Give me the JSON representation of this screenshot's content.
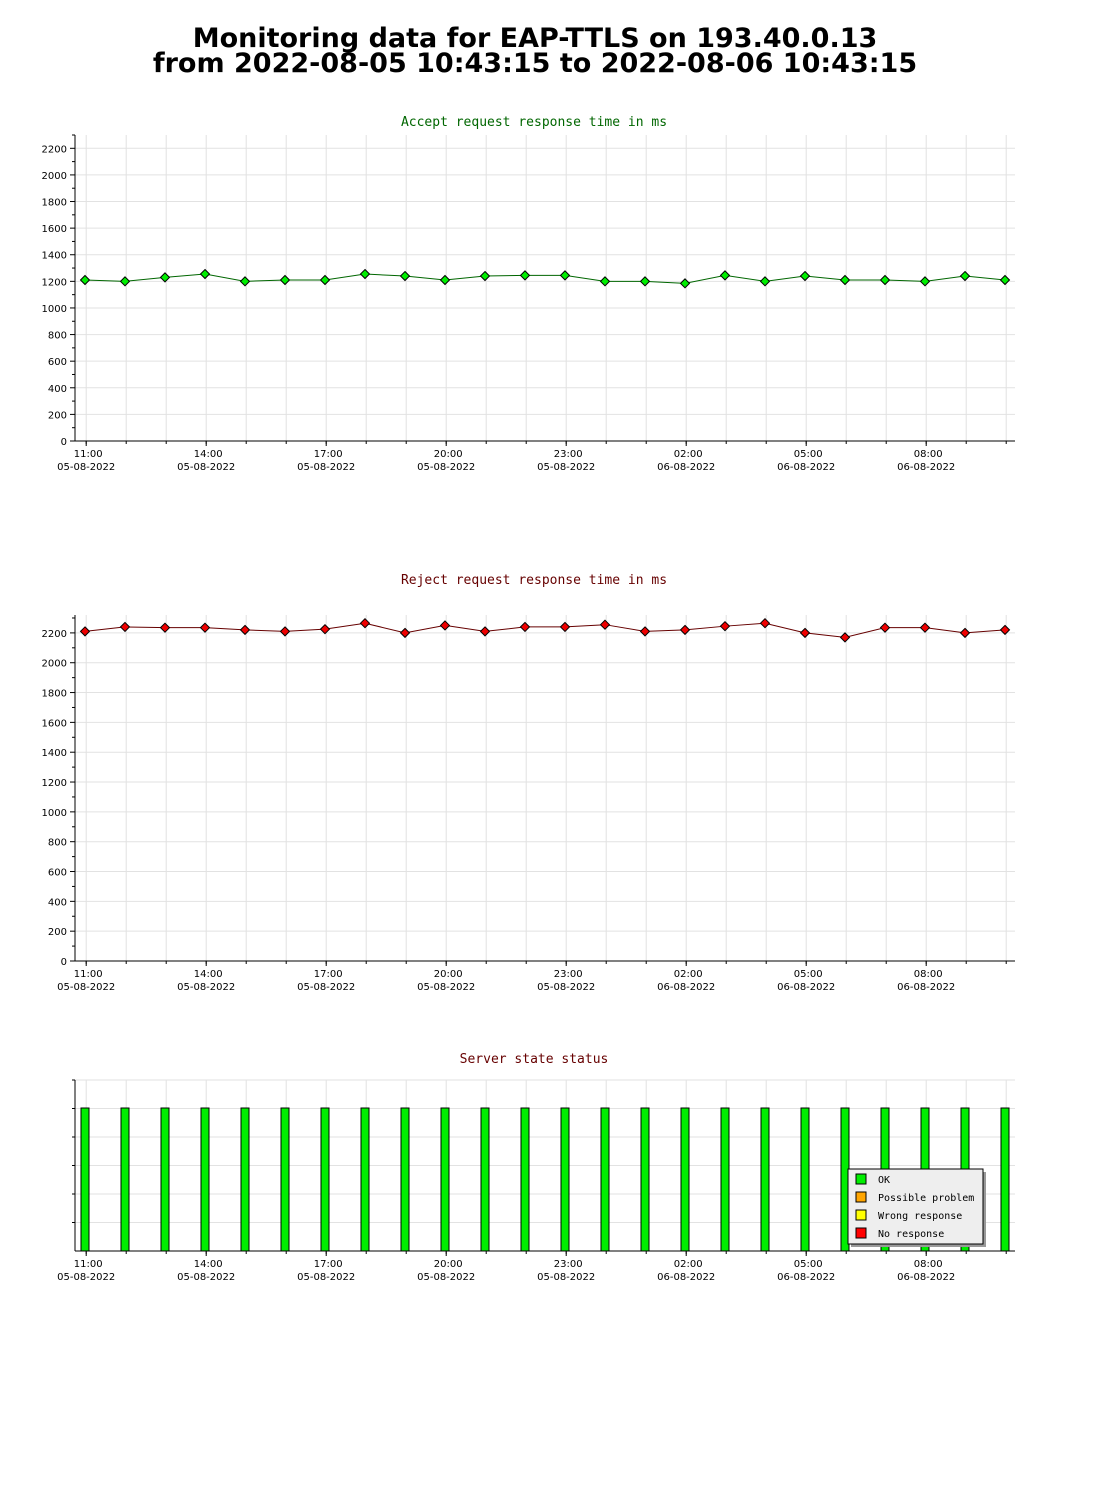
{
  "page": {
    "title_line1": "Monitoring data for EAP-TTLS on 193.40.0.13",
    "title_line2": "from 2022-08-05 10:43:15 to 2022-08-06 10:43:15"
  },
  "colors": {
    "accept_marker": "#00ee00",
    "accept_line": "#006600",
    "reject_marker": "#ee0000",
    "reject_line": "#660000",
    "ok_bar": "#00ee00",
    "possible_problem": "#ffa500",
    "wrong_response": "#ffff00",
    "no_response": "#ff0000"
  },
  "chart_data": [
    {
      "type": "line",
      "title": "Accept request response time in ms",
      "x": [
        "11:00",
        "12:00",
        "13:00",
        "14:00",
        "15:00",
        "16:00",
        "17:00",
        "18:00",
        "19:00",
        "20:00",
        "21:00",
        "22:00",
        "23:00",
        "00:00",
        "01:00",
        "02:00",
        "03:00",
        "04:00",
        "05:00",
        "06:00",
        "07:00",
        "08:00",
        "09:00",
        "10:00"
      ],
      "values": [
        1210,
        1200,
        1230,
        1255,
        1200,
        1210,
        1210,
        1255,
        1240,
        1210,
        1240,
        1245,
        1245,
        1200,
        1200,
        1185,
        1245,
        1200,
        1240,
        1210,
        1210,
        1200,
        1240,
        1210
      ],
      "ylim": [
        0,
        2300
      ],
      "yticks": [
        "0",
        "200",
        "400",
        "600",
        "800",
        "1000",
        "1200",
        "1400",
        "1600",
        "1800",
        "2000",
        "2200"
      ],
      "xticks": [
        {
          "time": "11:00",
          "date": "05-08-2022"
        },
        {
          "time": "14:00",
          "date": "05-08-2022"
        },
        {
          "time": "17:00",
          "date": "05-08-2022"
        },
        {
          "time": "20:00",
          "date": "05-08-2022"
        },
        {
          "time": "23:00",
          "date": "05-08-2022"
        },
        {
          "time": "02:00",
          "date": "06-08-2022"
        },
        {
          "time": "05:00",
          "date": "06-08-2022"
        },
        {
          "time": "08:00",
          "date": "06-08-2022"
        }
      ],
      "grid": true
    },
    {
      "type": "line",
      "title": "Reject request response time in ms",
      "x": [
        "11:00",
        "12:00",
        "13:00",
        "14:00",
        "15:00",
        "16:00",
        "17:00",
        "18:00",
        "19:00",
        "20:00",
        "21:00",
        "22:00",
        "23:00",
        "00:00",
        "01:00",
        "02:00",
        "03:00",
        "04:00",
        "05:00",
        "06:00",
        "07:00",
        "08:00",
        "09:00",
        "10:00"
      ],
      "values": [
        2210,
        2240,
        2235,
        2235,
        2220,
        2210,
        2225,
        2265,
        2200,
        2250,
        2210,
        2240,
        2240,
        2255,
        2210,
        2220,
        2245,
        2265,
        2200,
        2170,
        2235,
        2235,
        2200,
        2220
      ],
      "ylim": [
        0,
        2320
      ],
      "yticks": [
        "0",
        "200",
        "400",
        "600",
        "800",
        "1000",
        "1200",
        "1400",
        "1600",
        "1800",
        "2000",
        "2200"
      ],
      "xticks": [
        {
          "time": "11:00",
          "date": "05-08-2022"
        },
        {
          "time": "14:00",
          "date": "05-08-2022"
        },
        {
          "time": "17:00",
          "date": "05-08-2022"
        },
        {
          "time": "20:00",
          "date": "05-08-2022"
        },
        {
          "time": "23:00",
          "date": "05-08-2022"
        },
        {
          "time": "02:00",
          "date": "06-08-2022"
        },
        {
          "time": "05:00",
          "date": "06-08-2022"
        },
        {
          "time": "08:00",
          "date": "06-08-2022"
        }
      ],
      "grid": true
    },
    {
      "type": "bar",
      "title": "Server state status",
      "x": [
        "11:00",
        "12:00",
        "13:00",
        "14:00",
        "15:00",
        "16:00",
        "17:00",
        "18:00",
        "19:00",
        "20:00",
        "21:00",
        "22:00",
        "23:00",
        "00:00",
        "01:00",
        "02:00",
        "03:00",
        "04:00",
        "05:00",
        "06:00",
        "07:00",
        "08:00",
        "09:00",
        "10:00"
      ],
      "states": [
        "OK",
        "OK",
        "OK",
        "OK",
        "OK",
        "OK",
        "OK",
        "OK",
        "OK",
        "OK",
        "OK",
        "OK",
        "OK",
        "OK",
        "OK",
        "OK",
        "OK",
        "OK",
        "OK",
        "OK",
        "OK",
        "OK",
        "OK",
        "OK"
      ],
      "legend": [
        "OK",
        "Possible problem",
        "Wrong response",
        "No response"
      ],
      "legend_placement": "bottom-right",
      "xticks": [
        {
          "time": "11:00",
          "date": "05-08-2022"
        },
        {
          "time": "14:00",
          "date": "05-08-2022"
        },
        {
          "time": "17:00",
          "date": "05-08-2022"
        },
        {
          "time": "20:00",
          "date": "05-08-2022"
        },
        {
          "time": "23:00",
          "date": "05-08-2022"
        },
        {
          "time": "02:00",
          "date": "06-08-2022"
        },
        {
          "time": "05:00",
          "date": "06-08-2022"
        },
        {
          "time": "08:00",
          "date": "06-08-2022"
        }
      ],
      "grid": true
    }
  ]
}
